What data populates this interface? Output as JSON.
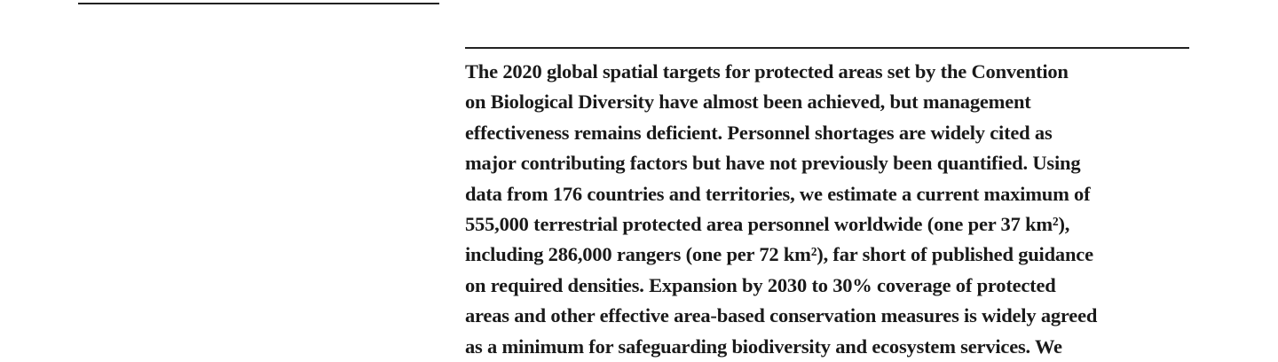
{
  "abstract": {
    "lines": [
      "The 2020 global spatial targets for protected areas set by the Convention",
      "on Biological Diversity have almost been achieved, but management",
      "effectiveness remains deficient. Personnel shortages are widely cited as",
      "major contributing factors but have not previously been quantified. Using",
      "data from 176 countries and territories, we estimate a current maximum of",
      "555,000 terrestrial protected area personnel worldwide (one per 37 km²),",
      "including 286,000 rangers (one per 72 km²), far short of published guidance",
      "on required densities. Expansion by 2030 to 30% coverage of protected",
      "areas and other effective area-based conservation measures is widely agreed",
      "as a minimum for safeguarding biodiversity and ecosystem services. We"
    ]
  }
}
